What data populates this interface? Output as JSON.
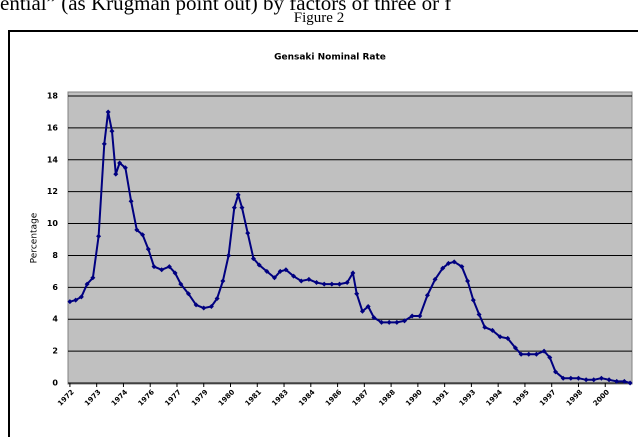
{
  "paper": {
    "text_line": "ential” (as Krugman point out) by factors of three or f",
    "figure_label": "Figure 2"
  },
  "chart_data": {
    "type": "line",
    "title": "Gensaki Nominal Rate",
    "y_label": "Percentage",
    "color": "#000080",
    "grid": true,
    "x": [
      1972.0,
      1972.3,
      1972.6,
      1972.9,
      1973.2,
      1973.5,
      1973.8,
      1974.0,
      1974.2,
      1974.4,
      1974.6,
      1974.9,
      1975.2,
      1975.5,
      1975.8,
      1976.1,
      1976.4,
      1976.8,
      1977.2,
      1977.5,
      1977.8,
      1978.2,
      1978.6,
      1979.0,
      1979.4,
      1979.7,
      1980.0,
      1980.3,
      1980.6,
      1980.8,
      1981.0,
      1981.3,
      1981.6,
      1981.9,
      1982.3,
      1982.7,
      1983.0,
      1983.3,
      1983.7,
      1984.1,
      1984.5,
      1984.9,
      1985.3,
      1985.7,
      1986.1,
      1986.5,
      1986.8,
      1987.0,
      1987.3,
      1987.6,
      1987.9,
      1988.3,
      1988.7,
      1989.1,
      1989.5,
      1989.9,
      1990.3,
      1990.7,
      1991.1,
      1991.5,
      1991.8,
      1992.1,
      1992.5,
      1992.8,
      1993.1,
      1993.4,
      1993.7,
      1994.1,
      1994.5,
      1994.9,
      1995.3,
      1995.6,
      1996.0,
      1996.4,
      1996.8,
      1997.1,
      1997.4,
      1997.8,
      1998.2,
      1998.6,
      1999.0,
      1999.4,
      1999.8,
      2000.2,
      2000.6,
      2001.0,
      2001.3
    ],
    "values": [
      5.1,
      5.2,
      5.4,
      6.2,
      6.6,
      9.2,
      15.0,
      17.0,
      15.8,
      13.1,
      13.8,
      13.5,
      11.4,
      9.6,
      9.3,
      8.4,
      7.3,
      7.1,
      7.3,
      6.9,
      6.2,
      5.6,
      4.9,
      4.7,
      4.8,
      5.3,
      6.4,
      8.0,
      11.0,
      11.8,
      11.0,
      9.4,
      7.8,
      7.4,
      7.0,
      6.6,
      7.0,
      7.1,
      6.7,
      6.4,
      6.5,
      6.3,
      6.2,
      6.2,
      6.2,
      6.3,
      6.9,
      5.6,
      4.5,
      4.8,
      4.1,
      3.8,
      3.8,
      3.8,
      3.9,
      4.2,
      4.2,
      5.5,
      6.5,
      7.2,
      7.5,
      7.6,
      7.3,
      6.4,
      5.2,
      4.3,
      3.5,
      3.3,
      2.9,
      2.8,
      2.2,
      1.8,
      1.8,
      1.8,
      2.0,
      1.6,
      0.7,
      0.3,
      0.3,
      0.3,
      0.2,
      0.2,
      0.3,
      0.2,
      0.1,
      0.1,
      0.0
    ],
    "xlim": [
      1971.9,
      2001.4
    ],
    "xticks": [
      1972,
      {
        "value": 1973.4,
        "label": "1973"
      },
      {
        "value": 1974.8,
        "label": "1974"
      },
      {
        "value": 1976.2,
        "label": "1976"
      },
      {
        "value": 1977.6,
        "label": "1977"
      },
      1979,
      {
        "value": 1980.4,
        "label": "1980"
      },
      {
        "value": 1981.8,
        "label": "1981"
      },
      {
        "value": 1983.2,
        "label": "1983"
      },
      {
        "value": 1984.6,
        "label": "1984"
      },
      1986,
      {
        "value": 1987.4,
        "label": "1987"
      },
      {
        "value": 1988.8,
        "label": "1988"
      },
      {
        "value": 1990.2,
        "label": "1990"
      },
      {
        "value": 1991.6,
        "label": "1991"
      },
      1993,
      {
        "value": 1994.4,
        "label": "1994"
      },
      {
        "value": 1995.8,
        "label": "1995"
      },
      {
        "value": 1997.2,
        "label": "1997"
      },
      {
        "value": 1998.6,
        "label": "1998"
      },
      2000
    ],
    "ylim": [
      0,
      18
    ],
    "yticks": [
      0,
      2,
      4,
      6,
      8,
      10,
      12,
      14,
      16,
      18
    ]
  }
}
